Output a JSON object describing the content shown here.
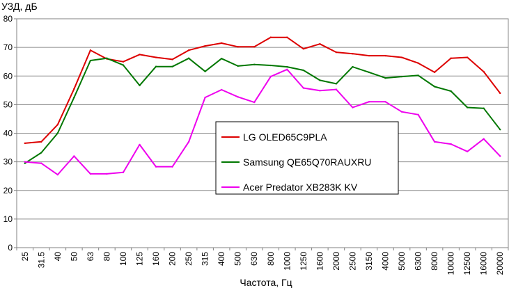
{
  "chart_data": {
    "type": "line",
    "title": "",
    "ylabel": "УЗД, дБ",
    "xlabel": "Частота, Гц",
    "ylim": [
      0,
      80
    ],
    "yticks": [
      0,
      10,
      20,
      30,
      40,
      50,
      60,
      70,
      80
    ],
    "grid": true,
    "legend_position": "center",
    "categories": [
      "25",
      "31.5",
      "40",
      "50",
      "63",
      "80",
      "100",
      "125",
      "160",
      "200",
      "250",
      "315",
      "400",
      "500",
      "630",
      "800",
      "1000",
      "1250",
      "1600",
      "2000",
      "2500",
      "3150",
      "4000",
      "5000",
      "6300",
      "8000",
      "10000",
      "12500",
      "16000",
      "20000"
    ],
    "series": [
      {
        "name": "LG OLED65C9PLA",
        "color": "#dd0000",
        "values": [
          36.5,
          37,
          43,
          55.5,
          69,
          66,
          65,
          67.5,
          66.5,
          65.8,
          69,
          70.5,
          71.5,
          70.2,
          70.2,
          73.5,
          73.5,
          69.5,
          71.2,
          68.3,
          67.8,
          67.1,
          67.1,
          66.5,
          64.5,
          61.3,
          66.2,
          66.5,
          61.5,
          54
        ]
      },
      {
        "name": "Samsung QE65Q70RAUXRU",
        "color": "#007700",
        "values": [
          29.5,
          33.2,
          40,
          52.5,
          65.4,
          66.2,
          63.8,
          56.7,
          63.3,
          63.3,
          66.2,
          61.6,
          66.1,
          63.5,
          64,
          63.7,
          63.2,
          62,
          58.5,
          57.3,
          63.2,
          61.3,
          59.3,
          59.8,
          60.2,
          56.3,
          54.7,
          49,
          48.7,
          41.3
        ]
      },
      {
        "name": "Acer Predator XB283K KV",
        "color": "#ee00ee",
        "values": [
          30,
          29.5,
          25.5,
          32,
          25.8,
          25.8,
          26.3,
          36,
          28.3,
          28.3,
          37,
          52.5,
          55.2,
          52.7,
          50.8,
          59.8,
          62.3,
          55.8,
          54.9,
          55.3,
          49,
          51,
          51,
          47.5,
          46.5,
          37,
          36.2,
          33.6,
          38,
          32
        ]
      }
    ]
  }
}
